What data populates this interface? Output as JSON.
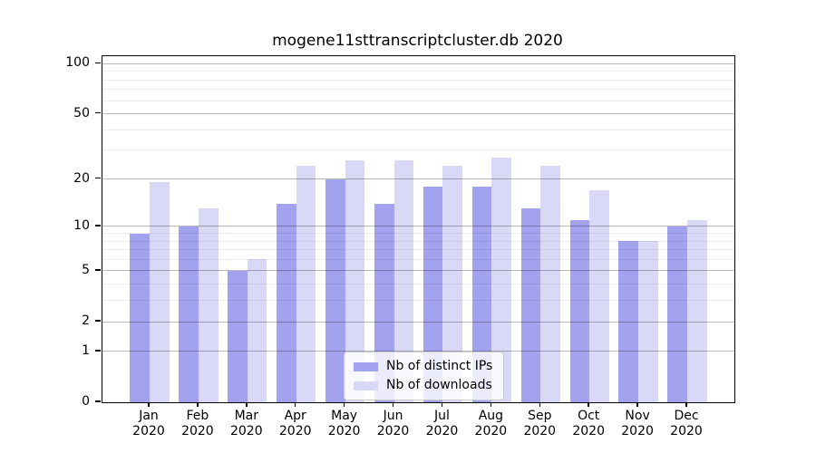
{
  "chart_data": {
    "type": "bar",
    "title": "mogene11sttranscriptcluster.db 2020",
    "scale": "log1p",
    "grid": true,
    "categories": [
      "Jan",
      "Feb",
      "Mar",
      "Apr",
      "May",
      "Jun",
      "Jul",
      "Aug",
      "Sep",
      "Oct",
      "Nov",
      "Dec"
    ],
    "year_label": "2020",
    "series": [
      {
        "name": "Nb of distinct IPs",
        "color": "#a2a2ee",
        "values": [
          9,
          10,
          5,
          14,
          20,
          14,
          18,
          18,
          13,
          11,
          8,
          10
        ]
      },
      {
        "name": "Nb of downloads",
        "color": "#d9d9f7",
        "values": [
          19,
          13,
          6,
          24,
          26,
          26,
          24,
          27,
          24,
          17,
          8,
          11
        ]
      }
    ],
    "yticks": [
      0,
      1,
      2,
      5,
      10,
      20,
      50,
      100
    ],
    "yticks_minor": [
      3,
      4,
      6,
      7,
      8,
      9,
      30,
      40,
      60,
      70,
      80,
      90
    ],
    "ylim": [
      0,
      111
    ],
    "xlabel": "",
    "ylabel": "",
    "legend_position": "lower center"
  },
  "colors": {
    "grid_major": "rgba(0,0,0,0.28)",
    "grid_minor": "rgba(0,0,0,0.07)",
    "spine": "#000000",
    "background": "#ffffff"
  }
}
